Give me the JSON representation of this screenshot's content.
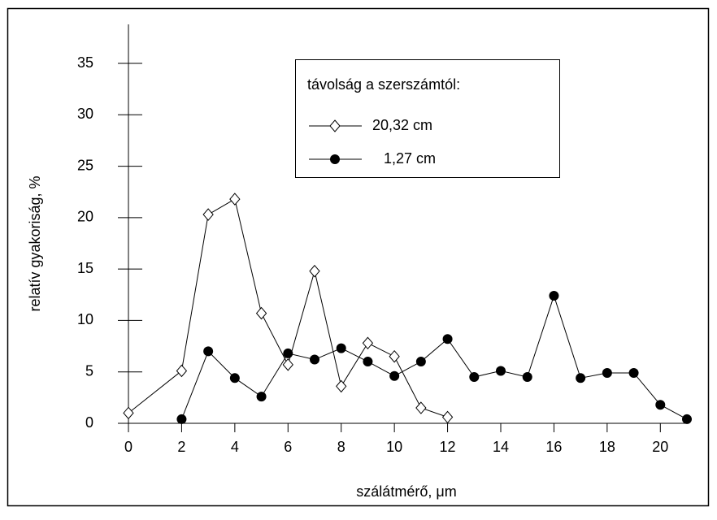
{
  "chart_data": {
    "type": "line",
    "xlabel": "szálátmérő, μm",
    "ylabel": "relatív gyakoriság, %",
    "legend_title": "távolság a szerszámtól:",
    "legend": "upper center",
    "xlim": [
      0,
      21
    ],
    "xticks": [
      0,
      2,
      4,
      6,
      8,
      10,
      12,
      14,
      16,
      18,
      20
    ],
    "ylim": [
      0,
      35
    ],
    "yticks": [
      0,
      5,
      10,
      15,
      20,
      25,
      30,
      35
    ],
    "series": [
      {
        "name": "20,32 cm",
        "color": "#000000",
        "marker": "open-diamond",
        "x": [
          0,
          2,
          3,
          4,
          5,
          6,
          7,
          8,
          9,
          10,
          11,
          12
        ],
        "values": [
          1.0,
          5.1,
          20.3,
          21.8,
          10.7,
          5.7,
          14.8,
          3.6,
          7.8,
          6.5,
          1.5,
          0.6
        ]
      },
      {
        "name": "1,27 cm",
        "color": "#000000",
        "marker": "filled-circle",
        "x": [
          2,
          3,
          4,
          5,
          6,
          7,
          8,
          9,
          10,
          11,
          12,
          13,
          14,
          15,
          16,
          17,
          18,
          19,
          20,
          21
        ],
        "values": [
          0.4,
          7.0,
          4.4,
          2.6,
          6.8,
          6.2,
          7.3,
          6.0,
          4.6,
          6.0,
          8.2,
          4.5,
          5.1,
          4.5,
          12.4,
          4.4,
          4.9,
          4.9,
          1.8,
          0.4
        ]
      }
    ]
  }
}
